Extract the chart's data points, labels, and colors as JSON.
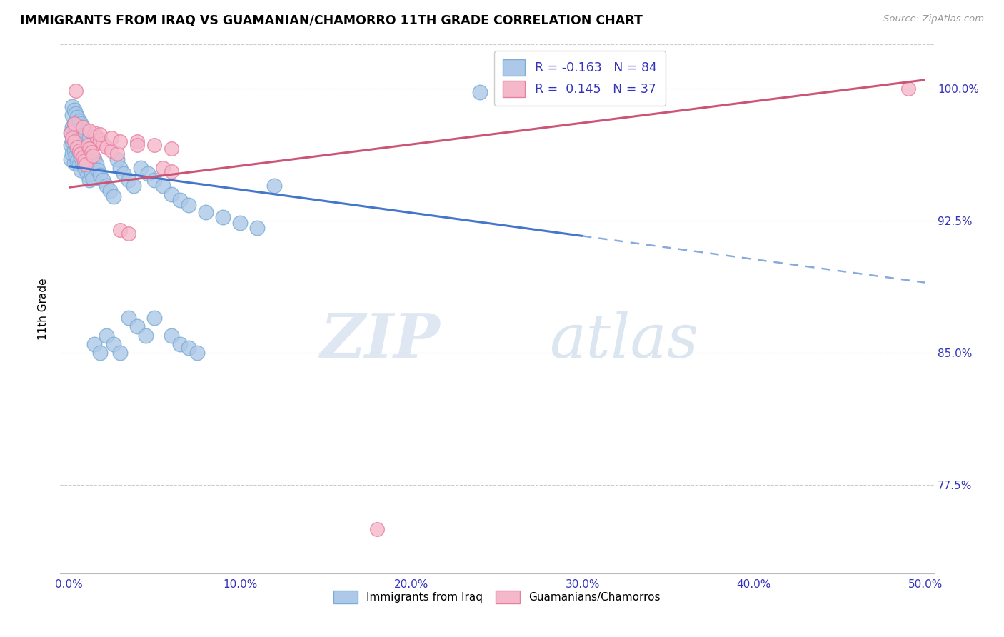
{
  "title": "IMMIGRANTS FROM IRAQ VS GUAMANIAN/CHAMORRO 11TH GRADE CORRELATION CHART",
  "source": "Source: ZipAtlas.com",
  "ylabel": "11th Grade",
  "xlim": [
    -0.005,
    0.505
  ],
  "ylim": [
    0.725,
    1.025
  ],
  "xtick_labels": [
    "0.0%",
    "10.0%",
    "20.0%",
    "30.0%",
    "40.0%",
    "50.0%"
  ],
  "xtick_vals": [
    0.0,
    0.1,
    0.2,
    0.3,
    0.4,
    0.5
  ],
  "ytick_labels": [
    "77.5%",
    "85.0%",
    "92.5%",
    "100.0%"
  ],
  "ytick_vals": [
    0.775,
    0.85,
    0.925,
    1.0
  ],
  "blue_color": "#adc8e8",
  "pink_color": "#f5b8cb",
  "blue_edge": "#7aadd4",
  "pink_edge": "#e87fa0",
  "trend_blue_solid": "#4477cc",
  "trend_blue_dash": "#88aadd",
  "trend_pink": "#cc5577",
  "legend_R_blue": "-0.163",
  "legend_N_blue": "84",
  "legend_R_pink": "0.145",
  "legend_N_pink": "37",
  "legend_label_blue": "Immigrants from Iraq",
  "legend_label_pink": "Guamanians/Chamorros",
  "blue_x": [
    0.001,
    0.001,
    0.001,
    0.002,
    0.002,
    0.002,
    0.002,
    0.003,
    0.003,
    0.003,
    0.003,
    0.004,
    0.004,
    0.004,
    0.005,
    0.005,
    0.005,
    0.006,
    0.006,
    0.006,
    0.007,
    0.007,
    0.007,
    0.008,
    0.008,
    0.009,
    0.009,
    0.01,
    0.01,
    0.011,
    0.011,
    0.012,
    0.012,
    0.013,
    0.014,
    0.015,
    0.016,
    0.017,
    0.018,
    0.02,
    0.022,
    0.024,
    0.026,
    0.028,
    0.03,
    0.032,
    0.035,
    0.038,
    0.042,
    0.046,
    0.05,
    0.055,
    0.06,
    0.065,
    0.07,
    0.08,
    0.09,
    0.1,
    0.11,
    0.12,
    0.002,
    0.003,
    0.004,
    0.005,
    0.006,
    0.007,
    0.008,
    0.009,
    0.01,
    0.012,
    0.015,
    0.018,
    0.022,
    0.026,
    0.03,
    0.035,
    0.04,
    0.045,
    0.05,
    0.06,
    0.065,
    0.07,
    0.075,
    0.24
  ],
  "blue_y": [
    0.975,
    0.968,
    0.96,
    0.985,
    0.978,
    0.97,
    0.963,
    0.98,
    0.973,
    0.965,
    0.958,
    0.976,
    0.969,
    0.962,
    0.973,
    0.966,
    0.959,
    0.971,
    0.964,
    0.957,
    0.968,
    0.961,
    0.954,
    0.965,
    0.958,
    0.963,
    0.956,
    0.961,
    0.954,
    0.958,
    0.951,
    0.955,
    0.948,
    0.952,
    0.949,
    0.96,
    0.957,
    0.954,
    0.951,
    0.948,
    0.945,
    0.942,
    0.939,
    0.96,
    0.955,
    0.952,
    0.948,
    0.945,
    0.955,
    0.952,
    0.948,
    0.945,
    0.94,
    0.937,
    0.934,
    0.93,
    0.927,
    0.924,
    0.921,
    0.945,
    0.99,
    0.988,
    0.986,
    0.984,
    0.982,
    0.98,
    0.978,
    0.976,
    0.974,
    0.972,
    0.855,
    0.85,
    0.86,
    0.855,
    0.85,
    0.87,
    0.865,
    0.86,
    0.87,
    0.86,
    0.855,
    0.853,
    0.85,
    0.998
  ],
  "pink_x": [
    0.001,
    0.002,
    0.003,
    0.004,
    0.005,
    0.006,
    0.007,
    0.008,
    0.009,
    0.01,
    0.011,
    0.012,
    0.013,
    0.014,
    0.015,
    0.016,
    0.018,
    0.02,
    0.022,
    0.025,
    0.028,
    0.03,
    0.035,
    0.04,
    0.05,
    0.06,
    0.003,
    0.008,
    0.012,
    0.018,
    0.025,
    0.03,
    0.04,
    0.055,
    0.06,
    0.18,
    0.49
  ],
  "pink_y": [
    0.975,
    0.972,
    0.97,
    0.999,
    0.967,
    0.965,
    0.963,
    0.961,
    0.959,
    0.957,
    0.968,
    0.966,
    0.964,
    0.962,
    0.975,
    0.973,
    0.971,
    0.969,
    0.967,
    0.965,
    0.963,
    0.92,
    0.918,
    0.97,
    0.968,
    0.966,
    0.98,
    0.978,
    0.976,
    0.974,
    0.972,
    0.97,
    0.968,
    0.955,
    0.953,
    0.75,
    1.0
  ],
  "watermark_zip": "ZIP",
  "watermark_atlas": "atlas",
  "figsize": [
    14.06,
    8.92
  ],
  "dpi": 100
}
